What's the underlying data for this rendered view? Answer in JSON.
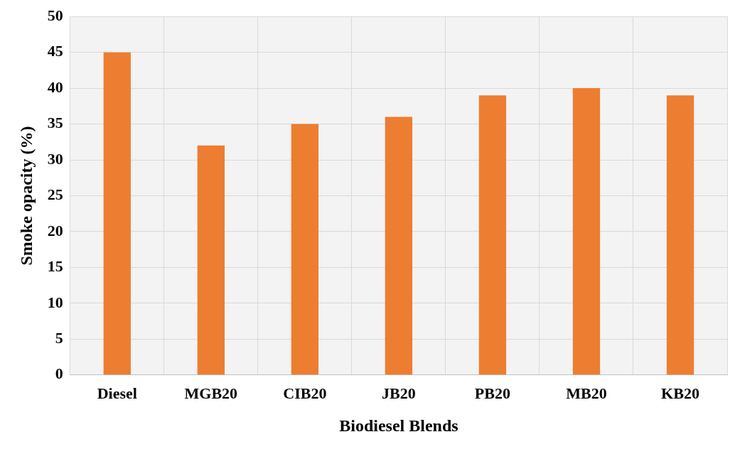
{
  "chart_data": {
    "type": "bar",
    "xlabel": "Biodiesel Blends",
    "ylabel": "Smoke opacity (%)",
    "categories": [
      "Diesel",
      "MGB20",
      "CIB20",
      "JB20",
      "PB20",
      "MB20",
      "KB20"
    ],
    "values": [
      45,
      32,
      35,
      36,
      39,
      40,
      39
    ],
    "color": "#ed7d31",
    "ylim": [
      0,
      50
    ],
    "yticks": [
      0,
      5,
      10,
      15,
      20,
      25,
      30,
      35,
      40,
      45,
      50
    ],
    "grid": true,
    "legend": false
  }
}
